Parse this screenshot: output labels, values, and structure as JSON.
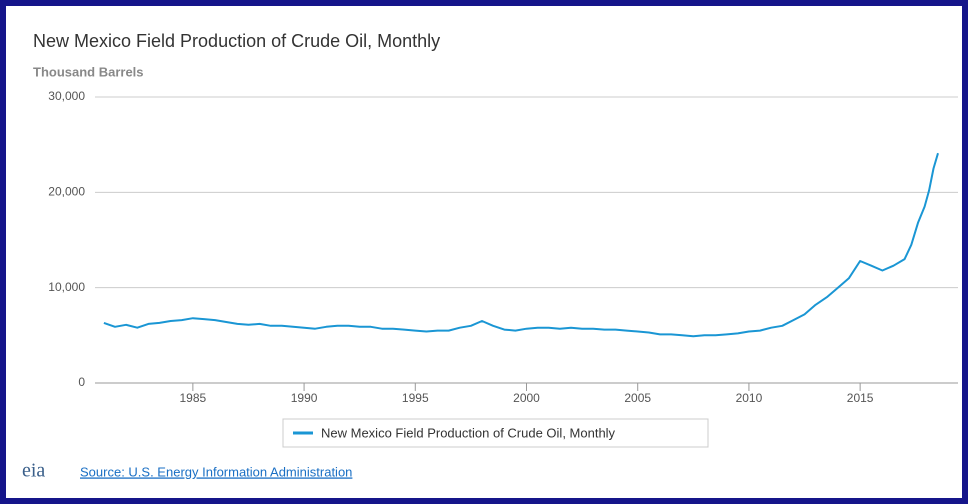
{
  "chart_data": {
    "type": "line",
    "title": "New Mexico Field Production of Crude Oil, Monthly",
    "y_axis_label": "Thousand Barrels",
    "x": [
      1981,
      1981.5,
      1982,
      1982.5,
      1983,
      1983.5,
      1984,
      1984.5,
      1985,
      1985.5,
      1986,
      1986.5,
      1987,
      1987.5,
      1988,
      1988.5,
      1989,
      1989.5,
      1990,
      1990.5,
      1991,
      1991.5,
      1992,
      1992.5,
      1993,
      1993.5,
      1994,
      1994.5,
      1995,
      1995.5,
      1996,
      1996.5,
      1997,
      1997.5,
      1998,
      1998.5,
      1999,
      1999.5,
      2000,
      2000.5,
      2001,
      2001.5,
      2002,
      2002.5,
      2003,
      2003.5,
      2004,
      2004.5,
      2005,
      2005.5,
      2006,
      2006.5,
      2007,
      2007.5,
      2008,
      2008.5,
      2009,
      2009.5,
      2010,
      2010.5,
      2011,
      2011.5,
      2012,
      2012.5,
      2013,
      2013.5,
      2014,
      2014.5,
      2015,
      2015.5,
      2016,
      2016.5,
      2017,
      2017.3,
      2017.6,
      2017.9,
      2018.1,
      2018.3,
      2018.5
    ],
    "series": [
      {
        "name": "New Mexico Field Production of Crude Oil, Monthly",
        "color": "#1a96d4",
        "values": [
          6300,
          5900,
          6100,
          5800,
          6200,
          6300,
          6500,
          6600,
          6800,
          6700,
          6600,
          6400,
          6200,
          6100,
          6200,
          6000,
          6000,
          5900,
          5800,
          5700,
          5900,
          6000,
          6000,
          5900,
          5900,
          5700,
          5700,
          5600,
          5500,
          5400,
          5500,
          5500,
          5800,
          6000,
          6500,
          6000,
          5600,
          5500,
          5700,
          5800,
          5800,
          5700,
          5800,
          5700,
          5700,
          5600,
          5600,
          5500,
          5400,
          5300,
          5100,
          5100,
          5000,
          4900,
          5000,
          5000,
          5100,
          5200,
          5400,
          5500,
          5800,
          6000,
          6600,
          7200,
          8200,
          9000,
          10000,
          11000,
          12800,
          12300,
          11800,
          12300,
          13000,
          14500,
          16800,
          18500,
          20200,
          22500,
          24100
        ]
      }
    ],
    "xlim": [
      1980.6,
      2019.4
    ],
    "xticks": [
      1985,
      1990,
      1995,
      2000,
      2005,
      2010,
      2015
    ],
    "ylim": [
      0,
      30000
    ],
    "yticks": [
      0,
      {
        "value": 10000,
        "label": "10,000"
      },
      {
        "value": 20000,
        "label": "20,000"
      },
      {
        "value": 30000,
        "label": "30,000"
      }
    ],
    "grid": true,
    "logo": "eia",
    "source": "Source: U.S. Energy Information Administration"
  }
}
